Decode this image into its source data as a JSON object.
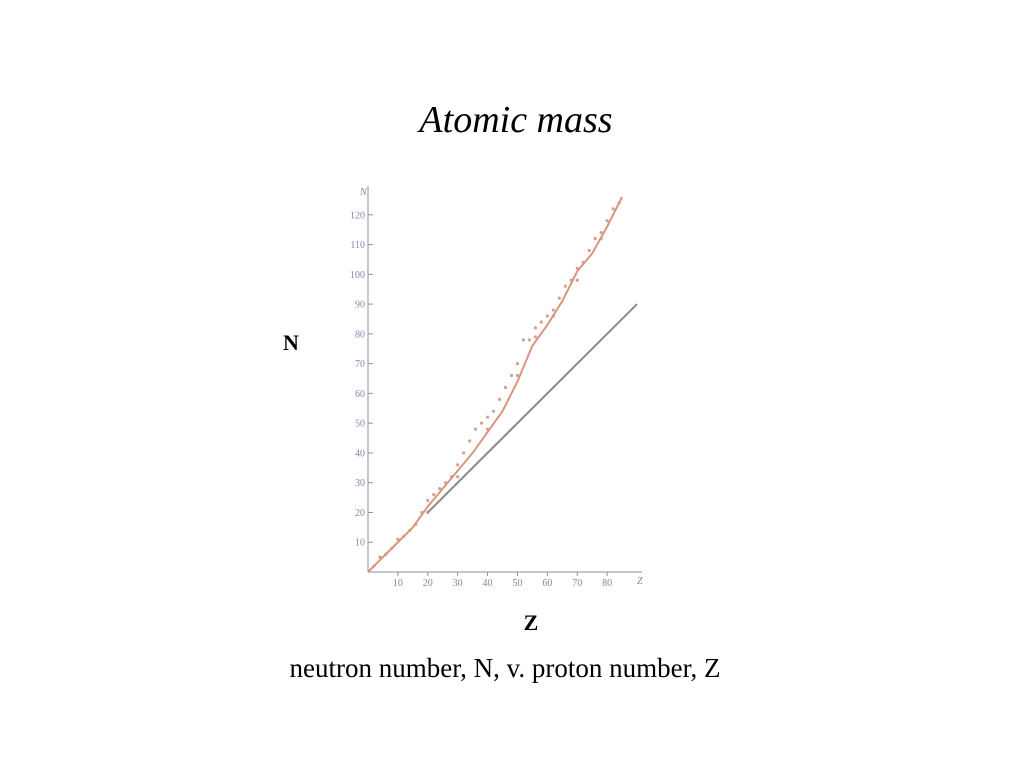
{
  "chart_data": {
    "type": "scatter",
    "title": "Atomic mass",
    "y_label": "N",
    "x_label": "Z",
    "y_axis_symbol": "N",
    "x_axis_symbol": "Z",
    "caption": "neutron number, N, v. proton number, Z",
    "xlim": [
      0,
      91
    ],
    "ylim": [
      0,
      129
    ],
    "xticks": [
      10,
      20,
      30,
      40,
      50,
      60,
      70,
      80
    ],
    "yticks": [
      10,
      20,
      30,
      40,
      50,
      60,
      70,
      80,
      90,
      100,
      110,
      120
    ],
    "series": [
      {
        "mode": "markers",
        "color": "#d4a090",
        "x": [
          2,
          4,
          6,
          8,
          10,
          12,
          14,
          16,
          18,
          20,
          22,
          24,
          26,
          28,
          30,
          32,
          34,
          36,
          38,
          40,
          42,
          44,
          46,
          48,
          50,
          52,
          54,
          56,
          58,
          60,
          62,
          64,
          66,
          68,
          70,
          72,
          74,
          76,
          78,
          80,
          82,
          84,
          20,
          30,
          40,
          50,
          56,
          62,
          70,
          78
        ],
        "values": [
          2,
          5,
          6,
          8,
          11,
          12,
          14,
          16,
          20,
          24,
          26,
          28,
          30,
          32,
          36,
          40,
          44,
          48,
          50,
          52,
          54,
          58,
          62,
          66,
          70,
          78,
          78,
          82,
          84,
          86,
          88,
          92,
          96,
          98,
          102,
          104,
          108,
          112,
          114,
          118,
          122,
          124,
          20,
          32,
          48,
          66,
          79,
          86,
          98,
          112
        ]
      },
      {
        "mode": "line",
        "color": "#d9957f",
        "x": [
          0,
          5,
          10,
          15,
          20,
          25,
          30,
          35,
          40,
          45,
          50,
          55,
          60,
          65,
          70,
          75,
          80,
          85
        ],
        "values": [
          0,
          5,
          10,
          15,
          22,
          28,
          34,
          40,
          47,
          54,
          64,
          76,
          83,
          91,
          101,
          107,
          116,
          126
        ]
      },
      {
        "mode": "line",
        "color": "#8a8a8a",
        "x": [
          20,
          90
        ],
        "values": [
          20,
          90
        ]
      }
    ]
  }
}
